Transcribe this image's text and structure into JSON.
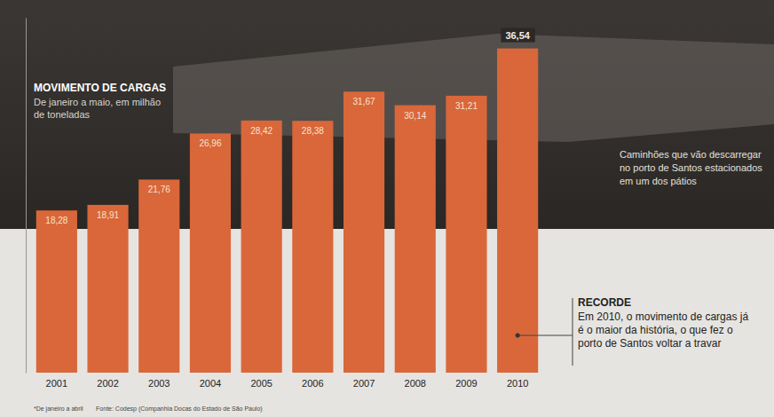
{
  "chart_data": {
    "type": "bar",
    "title": "MOVIMENTO DE CARGAS",
    "subtitle": "De janeiro a maio, em milhão de toneladas",
    "categories": [
      "2001",
      "2002",
      "2003",
      "2004",
      "2005",
      "2006",
      "2007",
      "2008",
      "2009",
      "2010"
    ],
    "values": [
      18.28,
      18.91,
      21.76,
      26.96,
      28.42,
      28.38,
      31.67,
      30.14,
      31.21,
      36.54
    ],
    "value_labels": [
      "18,28",
      "18,91",
      "21,76",
      "26,96",
      "28,42",
      "28,38",
      "31,67",
      "30,14",
      "31,21",
      "36,54"
    ],
    "color": "#d9673a",
    "ylim": [
      0,
      40
    ],
    "yticks": [],
    "data_labels": true,
    "tick_labels": "x",
    "annotations": [
      {
        "text": "Caminhões que vão descarregar no porto de Santos estacionados em um dos pátios"
      },
      {
        "title": "RECORDE",
        "text": "Em 2010, o movimento de cargas já é o maior da história, o que fez o porto de Santos voltar a travar"
      }
    ],
    "footnote": "*De janeiro a abril",
    "source": "Fonte: Codesp (Companhia Docas do Estado de São Paulo)"
  }
}
